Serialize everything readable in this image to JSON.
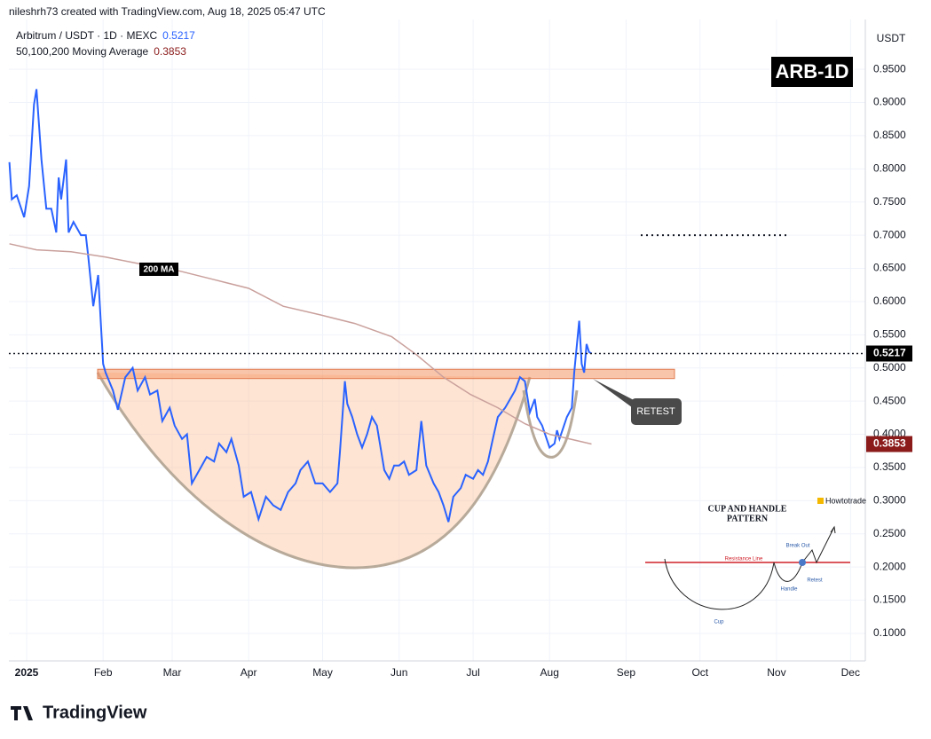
{
  "header": {
    "credit": "nileshrh73 created with TradingView.com, Aug 18, 2025 05:47 UTC",
    "brand": "TradingView"
  },
  "chart_data": {
    "type": "line",
    "axis_unit": "USDT",
    "series": [
      {
        "name": "Arbitrum / USDT · 1D · MEXC",
        "color": "#2962ff",
        "x": [
          -7,
          -6,
          -4,
          -1,
          1,
          3,
          4,
          6,
          8,
          10,
          12,
          13,
          14,
          16,
          17,
          19,
          22,
          24,
          25,
          27,
          29,
          31,
          32,
          35,
          37,
          40,
          43,
          45,
          48,
          50,
          53,
          55,
          58,
          60,
          63,
          65,
          67,
          70,
          73,
          76,
          78,
          81,
          83,
          86,
          88,
          91,
          94,
          97,
          100,
          103,
          106,
          109,
          111,
          114,
          117,
          120,
          123,
          126,
          127,
          129,
          130,
          132,
          134,
          136,
          138,
          140,
          142,
          145,
          147,
          149,
          151,
          153,
          155,
          158,
          160,
          162,
          165,
          167,
          169,
          171,
          173,
          176,
          178,
          181,
          183,
          185,
          187,
          189,
          191,
          194,
          196,
          198,
          200,
          202,
          204,
          206,
          207,
          209,
          212,
          214,
          215,
          216,
          219,
          221,
          222,
          224,
          225,
          226,
          227,
          228,
          229
        ],
        "values": [
          0.81,
          0.754,
          0.76,
          0.727,
          0.774,
          0.897,
          0.92,
          0.814,
          0.74,
          0.74,
          0.704,
          0.787,
          0.754,
          0.814,
          0.704,
          0.72,
          0.7,
          0.7,
          0.667,
          0.593,
          0.64,
          0.506,
          0.493,
          0.466,
          0.437,
          0.486,
          0.5,
          0.466,
          0.486,
          0.46,
          0.466,
          0.42,
          0.44,
          0.413,
          0.393,
          0.4,
          0.326,
          0.346,
          0.366,
          0.359,
          0.386,
          0.373,
          0.393,
          0.353,
          0.306,
          0.313,
          0.272,
          0.306,
          0.293,
          0.286,
          0.313,
          0.326,
          0.346,
          0.359,
          0.326,
          0.326,
          0.313,
          0.326,
          0.373,
          0.48,
          0.446,
          0.426,
          0.4,
          0.38,
          0.4,
          0.426,
          0.413,
          0.346,
          0.333,
          0.353,
          0.353,
          0.359,
          0.339,
          0.346,
          0.42,
          0.353,
          0.326,
          0.313,
          0.293,
          0.268,
          0.306,
          0.319,
          0.339,
          0.333,
          0.346,
          0.339,
          0.359,
          0.393,
          0.426,
          0.44,
          0.453,
          0.466,
          0.486,
          0.48,
          0.433,
          0.453,
          0.426,
          0.413,
          0.38,
          0.386,
          0.406,
          0.393,
          0.426,
          0.44,
          0.493,
          0.571,
          0.506,
          0.493,
          0.536,
          0.524,
          0.5217
        ]
      },
      {
        "name": "50,100,200 Moving Average",
        "color": "#c9a09c",
        "x": [
          -7,
          4,
          18,
          32,
          47,
          61,
          76,
          90,
          104,
          119,
          133,
          148,
          158,
          169,
          180,
          191,
          202,
          212,
          229
        ],
        "values": [
          0.687,
          0.678,
          0.675,
          0.667,
          0.656,
          0.647,
          0.633,
          0.62,
          0.593,
          0.58,
          0.567,
          0.547,
          0.52,
          0.486,
          0.46,
          0.44,
          0.416,
          0.4,
          0.3853
        ]
      }
    ],
    "xlim": [
      -7.2,
      340
    ],
    "xticks": [
      {
        "value": 0,
        "label": "2025"
      },
      {
        "value": 31,
        "label": "Feb"
      },
      {
        "value": 59,
        "label": "Mar"
      },
      {
        "value": 90,
        "label": "Apr"
      },
      {
        "value": 120,
        "label": "May"
      },
      {
        "value": 151,
        "label": "Jun"
      },
      {
        "value": 181,
        "label": "Jul"
      },
      {
        "value": 212,
        "label": "Aug"
      },
      {
        "value": 243,
        "label": "Sep"
      },
      {
        "value": 273,
        "label": "Oct"
      },
      {
        "value": 304,
        "label": "Nov"
      },
      {
        "value": 334,
        "label": "Dec"
      }
    ],
    "ylim": [
      0.0585,
      1.025
    ],
    "yticks": [
      {
        "value": 0.1,
        "label": "0.1000"
      },
      {
        "value": 0.15,
        "label": "0.1500"
      },
      {
        "value": 0.2,
        "label": "0.2000"
      },
      {
        "value": 0.25,
        "label": "0.2500"
      },
      {
        "value": 0.3,
        "label": "0.3000"
      },
      {
        "value": 0.35,
        "label": "0.3500"
      },
      {
        "value": 0.4,
        "label": "0.4000"
      },
      {
        "value": 0.45,
        "label": "0.4500"
      },
      {
        "value": 0.5,
        "label": "0.5000"
      },
      {
        "value": 0.55,
        "label": "0.5500"
      },
      {
        "value": 0.6,
        "label": "0.6000"
      },
      {
        "value": 0.65,
        "label": "0.6500"
      },
      {
        "value": 0.7,
        "label": "0.7000"
      },
      {
        "value": 0.75,
        "label": "0.7500"
      },
      {
        "value": 0.8,
        "label": "0.8000"
      },
      {
        "value": 0.85,
        "label": "0.8500"
      },
      {
        "value": 0.9,
        "label": "0.9000"
      },
      {
        "value": 0.95,
        "label": "0.9500"
      }
    ],
    "grid": true,
    "resistance_zone": [
      0.484,
      0.498
    ],
    "target_level": 0.7,
    "annotations": {
      "ma": "200 MA",
      "retest": "RETEST",
      "ticker": "ARB-1D"
    },
    "inset": {
      "title_1": "CUP AND HANDLE",
      "title_2": "PATTERN",
      "brand": "Howtotrade",
      "resistance": "Resistance Line",
      "breakout": "Break Out",
      "handle": "Handle",
      "retest": "Retest",
      "cup": "Cup"
    }
  }
}
